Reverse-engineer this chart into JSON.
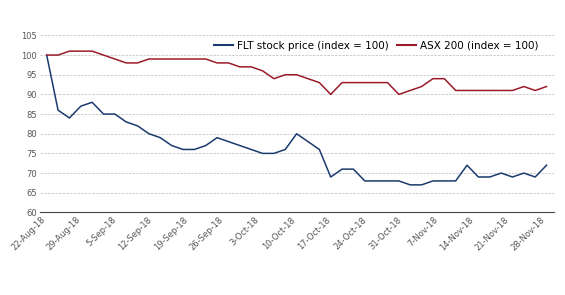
{
  "x_labels": [
    "22-Aug-18",
    "29-Aug-18",
    "5-Sep-18",
    "12-Sep-18",
    "19-Sep-18",
    "26-Sep-18",
    "3-Oct-18",
    "10-Oct-18",
    "17-Oct-18",
    "24-Oct-18",
    "31-Oct-18",
    "7-Nov-18",
    "14-Nov-18",
    "21-Nov-18",
    "28-Nov-18"
  ],
  "flt": [
    100,
    86,
    84,
    87,
    88,
    85,
    85,
    83,
    82,
    80,
    79,
    77,
    76,
    76,
    77,
    79,
    78,
    77,
    76,
    75,
    75,
    76,
    80,
    78,
    76,
    69,
    71,
    71,
    68,
    68,
    68,
    68,
    67,
    67,
    68,
    68,
    68,
    72,
    69,
    69,
    70,
    69,
    70,
    69,
    72
  ],
  "asx": [
    100,
    100,
    101,
    101,
    101,
    100,
    99,
    98,
    98,
    99,
    99,
    99,
    99,
    99,
    99,
    98,
    98,
    97,
    97,
    96,
    94,
    95,
    95,
    94,
    93,
    90,
    93,
    93,
    93,
    93,
    93,
    90,
    91,
    92,
    94,
    94,
    91,
    91,
    91,
    91,
    91,
    91,
    92,
    91,
    92
  ],
  "flt_color": "#1a3a6e",
  "asx_color": "#9b1b2a",
  "ylim": [
    60,
    105
  ],
  "yticks": [
    60,
    65,
    70,
    75,
    80,
    85,
    90,
    95,
    100,
    105
  ],
  "grid_color": "#aaaaaa",
  "background_color": "#ffffff",
  "header_color": "#2c4a7c",
  "flt_label": "FLT stock price (index = 100)",
  "asx_label": "ASX 200 (index = 100)",
  "legend_fontsize": 7.5,
  "tick_fontsize": 6,
  "tick_color": "#555555"
}
